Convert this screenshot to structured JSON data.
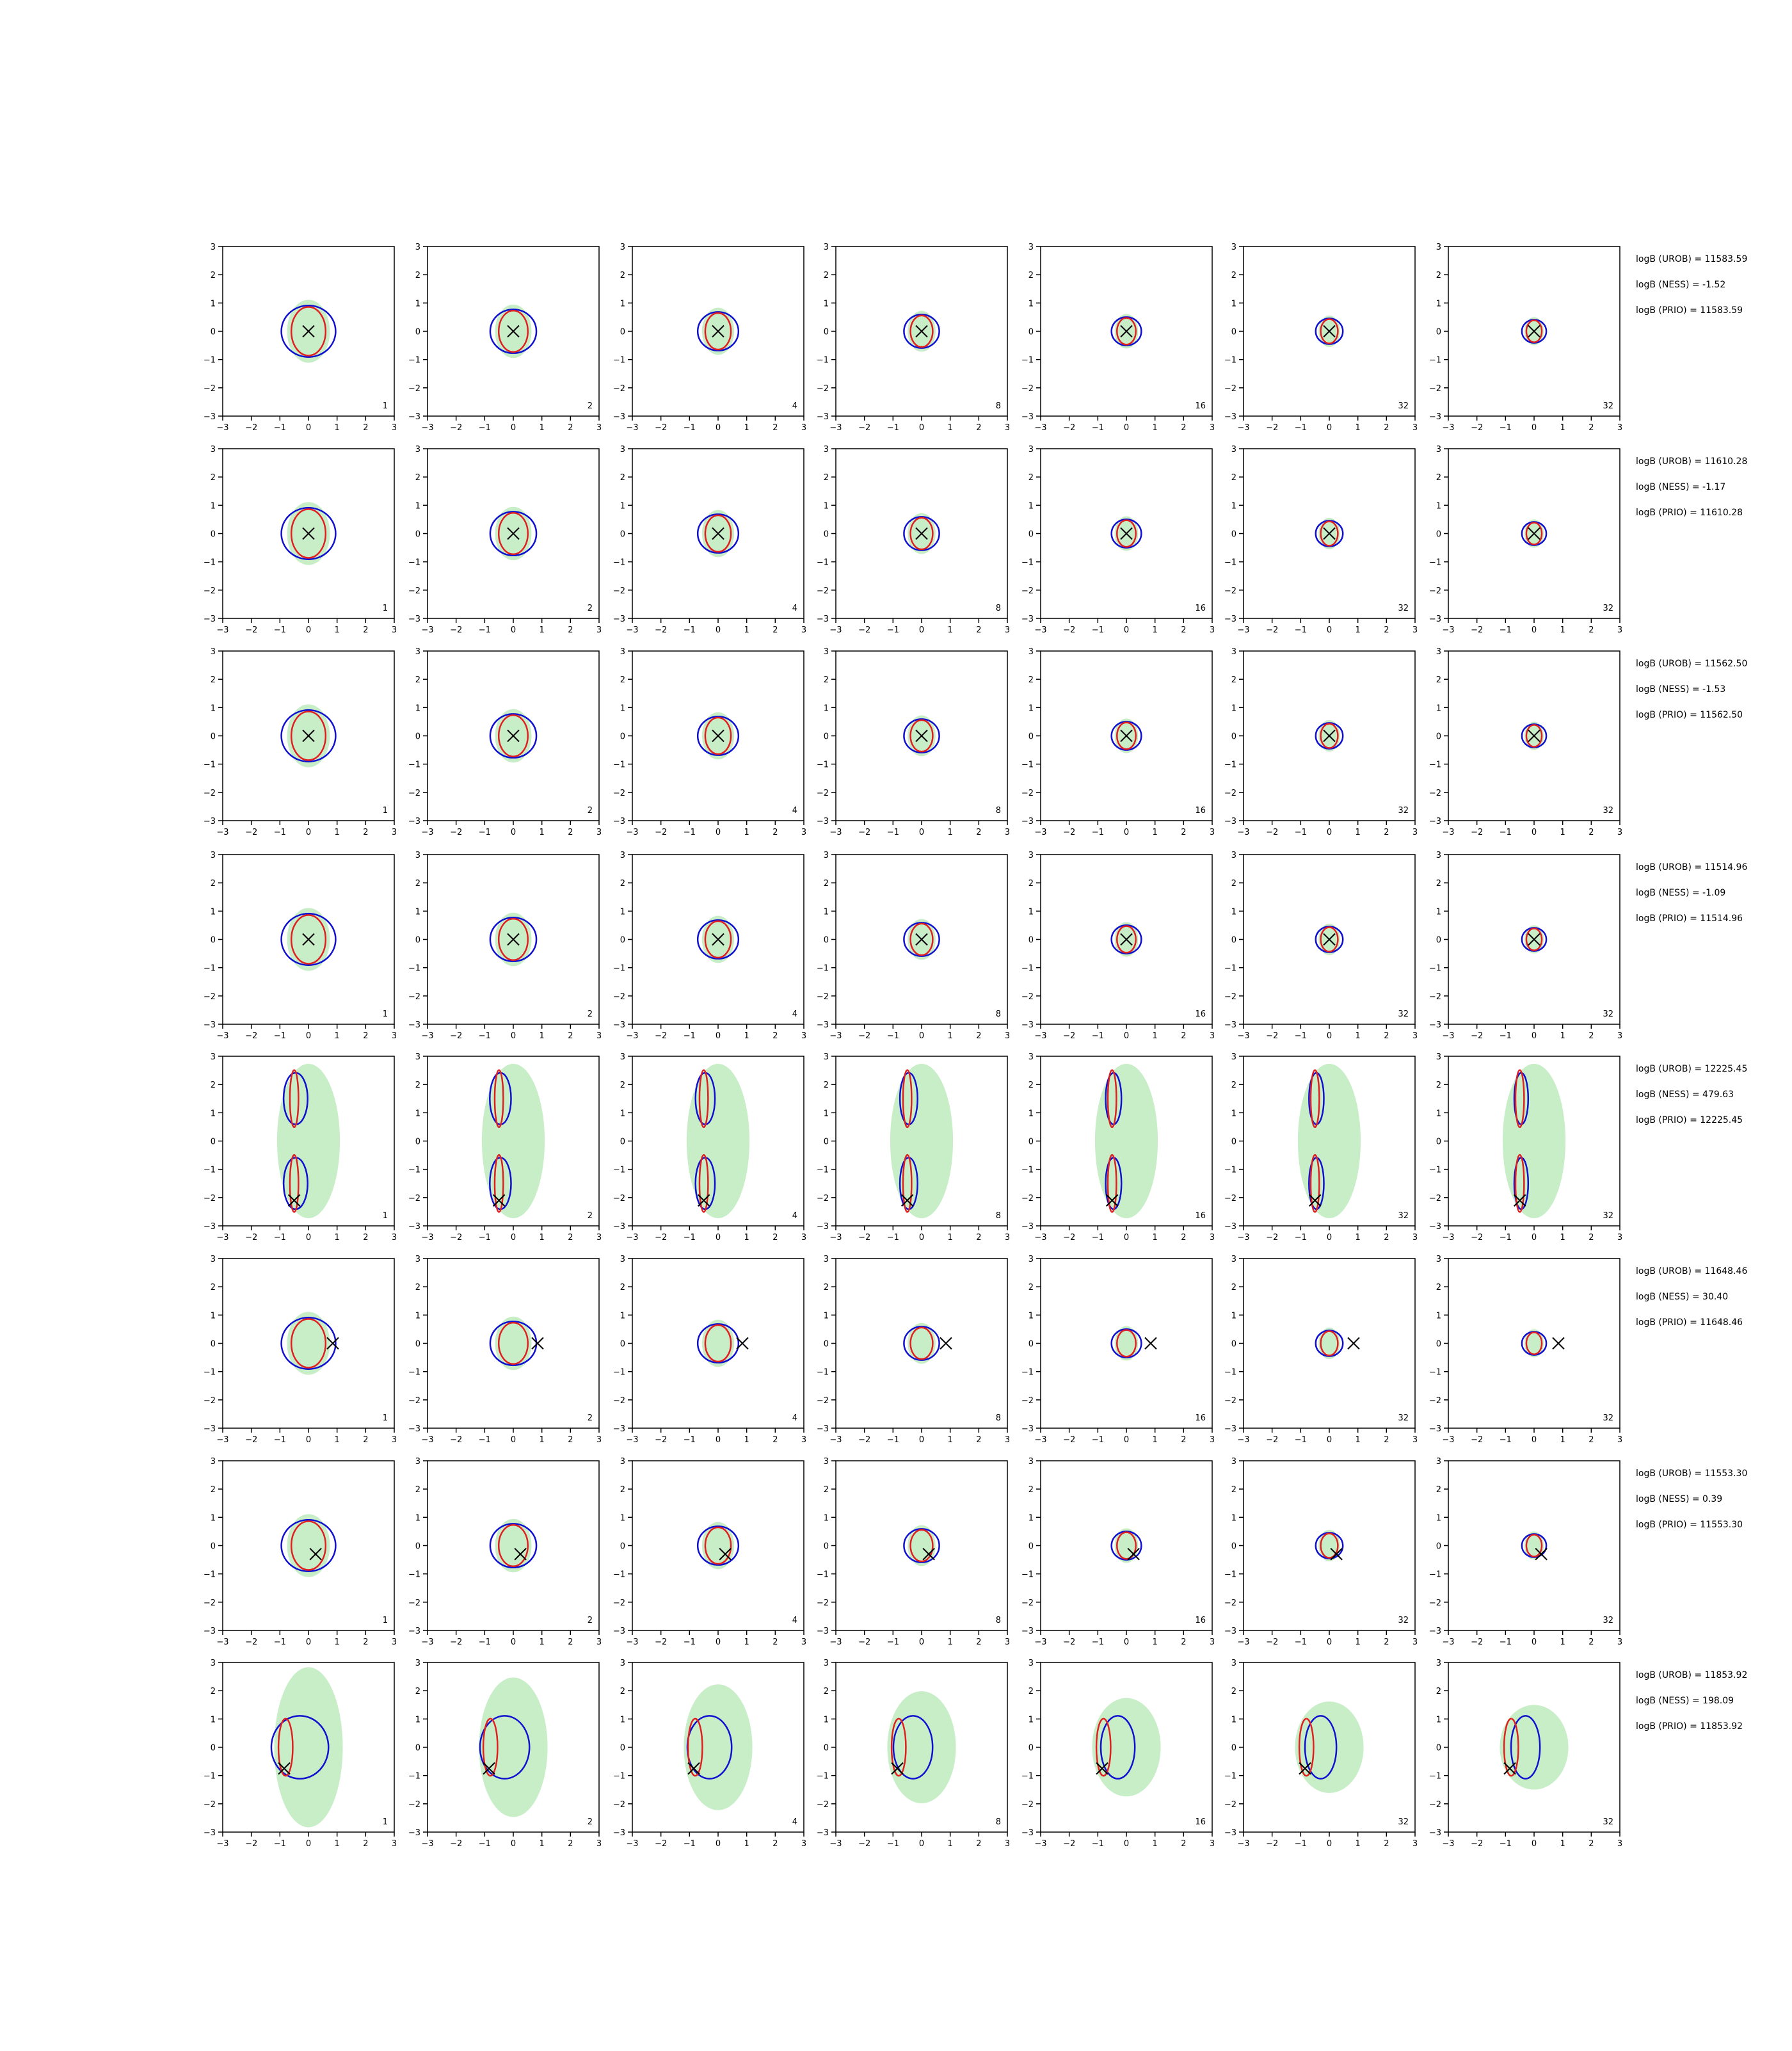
{
  "axes": {
    "xlim": [
      -3,
      3
    ],
    "ylim": [
      -3,
      3
    ],
    "xticks": [
      {
        "value": -3,
        "label": "−3"
      },
      {
        "value": -2,
        "label": "−2"
      },
      {
        "value": -1,
        "label": "−1"
      },
      0,
      1,
      2,
      3
    ],
    "yticks": [
      {
        "value": -3,
        "label": "−3"
      },
      {
        "value": -2,
        "label": "−2"
      },
      {
        "value": -1,
        "label": "−1"
      },
      0,
      1,
      2,
      3
    ]
  },
  "panel_labels": [
    1,
    2,
    4,
    8,
    16,
    32,
    32
  ],
  "rows": [
    {
      "annotations": [
        "logB (UROB) = 11583.59",
        "logB (NESS) = -1.52",
        "logB (PRIO) = 11583.59"
      ],
      "marker": [
        0,
        0
      ]
    },
    {
      "annotations": [
        "logB (UROB) = 11610.28",
        "logB (NESS) = -1.17",
        "logB (PRIO) = 11610.28"
      ],
      "marker": [
        0,
        0
      ]
    },
    {
      "annotations": [
        "logB (UROB) = 11562.50",
        "logB (NESS) = -1.53",
        "logB (PRIO) = 11562.50"
      ],
      "marker": [
        0,
        0
      ]
    },
    {
      "annotations": [
        "logB (UROB) = 11514.96",
        "logB (NESS) = -1.09",
        "logB (PRIO) = 11514.96"
      ],
      "marker": [
        0,
        0
      ]
    },
    {
      "annotations": [
        "logB (UROB) = 12225.45",
        "logB (NESS) = 479.63",
        "logB (PRIO) = 12225.45"
      ],
      "marker": [
        -0.5,
        -2.1
      ]
    },
    {
      "annotations": [
        "logB (UROB) = 11648.46",
        "logB (NESS) = 30.40",
        "logB (PRIO) = 11648.46"
      ],
      "marker": [
        0.85,
        0
      ]
    },
    {
      "annotations": [
        "logB (UROB) = 11553.30",
        "logB (NESS) = 0.39",
        "logB (PRIO) = 11553.30"
      ],
      "marker": [
        0.25,
        -0.3
      ]
    },
    {
      "annotations": [
        "logB (UROB) = 11853.92",
        "logB (NESS) = 198.09",
        "logB (PRIO) = 11853.92"
      ],
      "marker": [
        -0.85,
        -0.75
      ]
    }
  ]
}
